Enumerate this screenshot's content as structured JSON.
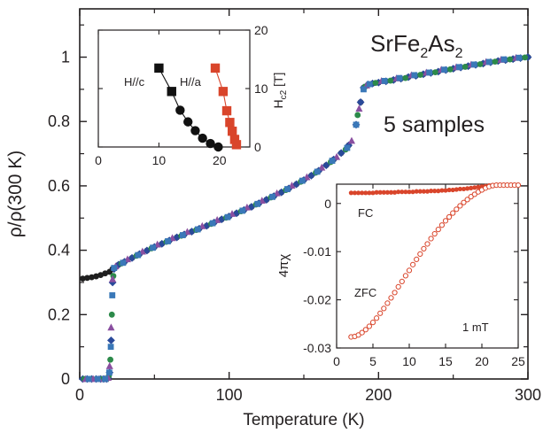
{
  "chart_data": [
    {
      "id": "main",
      "type": "scatter",
      "title": "SrFe2As2",
      "title_parts": {
        "base1": "SrFe",
        "sub1": "2",
        "base2": "As",
        "sub2": "2"
      },
      "annotation": "5 samples",
      "xlabel": "Temperature (K)",
      "ylabel": "ρ/ρ(300 K)",
      "xlim": [
        0,
        300
      ],
      "ylim": [
        0,
        1.15
      ],
      "xticks": [
        "0",
        "100",
        "200",
        "300"
      ],
      "yticks": [
        "0",
        "0.2",
        "0.4",
        "0.6",
        "0.8",
        "1"
      ],
      "grid": false,
      "legend": "none",
      "series": [
        {
          "color": "#1f1f1f",
          "marker": "circle",
          "x": [
            2,
            5,
            8,
            11,
            14,
            17,
            20,
            22,
            26,
            30,
            35,
            40,
            45,
            50,
            55,
            60,
            65,
            70,
            75,
            80,
            85,
            90,
            95,
            100,
            105,
            110,
            115,
            120,
            125,
            130,
            135,
            140,
            145,
            150,
            155,
            160,
            165,
            170,
            175,
            180,
            185,
            188,
            190,
            193,
            196,
            200,
            205,
            210,
            215,
            220,
            225,
            230,
            235,
            240,
            245,
            250,
            255,
            260,
            265,
            270,
            275,
            280,
            285,
            290,
            295,
            300
          ],
          "y": [
            0.312,
            0.314,
            0.316,
            0.319,
            0.323,
            0.328,
            0.333,
            0.342,
            0.355,
            0.364,
            0.376,
            0.388,
            0.399,
            0.41,
            0.42,
            0.43,
            0.44,
            0.449,
            0.458,
            0.467,
            0.476,
            0.486,
            0.496,
            0.505,
            0.515,
            0.525,
            0.535,
            0.546,
            0.557,
            0.568,
            0.58,
            0.592,
            0.605,
            0.618,
            0.632,
            0.647,
            0.664,
            0.682,
            0.702,
            0.726,
            0.79,
            0.86,
            0.905,
            0.915,
            0.918,
            0.921,
            0.925,
            0.929,
            0.933,
            0.938,
            0.942,
            0.947,
            0.951,
            0.955,
            0.96,
            0.964,
            0.968,
            0.972,
            0.976,
            0.98,
            0.984,
            0.988,
            0.991,
            0.994,
            0.997,
            1.0
          ]
        },
        {
          "color": "#2a4a9a",
          "marker": "diamond",
          "x": [
            2,
            5,
            8,
            11,
            14,
            16,
            18,
            19,
            20,
            21,
            22,
            23,
            26,
            30,
            35,
            40,
            45,
            50,
            55,
            60,
            65,
            70,
            75,
            80,
            85,
            90,
            95,
            100,
            105,
            110,
            115,
            120,
            125,
            130,
            135,
            140,
            145,
            150,
            155,
            160,
            165,
            170,
            175,
            180,
            185,
            188,
            190,
            193,
            196,
            200,
            205,
            210,
            215,
            220,
            225,
            230,
            235,
            240,
            245,
            250,
            255,
            260,
            265,
            270,
            275,
            280,
            285,
            290,
            295,
            300
          ],
          "y": [
            0,
            0,
            0,
            0,
            0,
            0,
            0,
            0.003,
            0.02,
            0.12,
            0.3,
            0.342,
            0.355,
            0.364,
            0.376,
            0.388,
            0.399,
            0.41,
            0.42,
            0.43,
            0.44,
            0.449,
            0.458,
            0.467,
            0.476,
            0.486,
            0.496,
            0.505,
            0.515,
            0.525,
            0.535,
            0.546,
            0.557,
            0.568,
            0.58,
            0.592,
            0.605,
            0.618,
            0.632,
            0.647,
            0.664,
            0.682,
            0.702,
            0.726,
            0.79,
            0.86,
            0.905,
            0.915,
            0.918,
            0.921,
            0.925,
            0.929,
            0.933,
            0.938,
            0.942,
            0.947,
            0.951,
            0.955,
            0.96,
            0.964,
            0.968,
            0.972,
            0.976,
            0.98,
            0.984,
            0.988,
            0.991,
            0.994,
            0.997,
            1.0
          ]
        },
        {
          "color": "#2c8a4a",
          "marker": "circle",
          "x": [
            3,
            7,
            11,
            15,
            18,
            19.5,
            20.5,
            21.5,
            22.5,
            28,
            38,
            48,
            58,
            68,
            78,
            88,
            98,
            108,
            118,
            128,
            138,
            148,
            158,
            168,
            178,
            186,
            191,
            198,
            208,
            218,
            228,
            238,
            248,
            258,
            268,
            278,
            288,
            298
          ],
          "y": [
            0,
            0,
            0,
            0,
            0,
            0.01,
            0.06,
            0.2,
            0.32,
            0.359,
            0.383,
            0.406,
            0.426,
            0.445,
            0.463,
            0.482,
            0.501,
            0.521,
            0.542,
            0.564,
            0.587,
            0.613,
            0.641,
            0.674,
            0.713,
            0.82,
            0.908,
            0.92,
            0.927,
            0.935,
            0.945,
            0.953,
            0.962,
            0.97,
            0.978,
            0.986,
            0.993,
            0.999
          ]
        },
        {
          "color": "#8a4fa0",
          "marker": "triangle",
          "x": [
            4,
            9,
            13,
            17,
            19,
            20,
            21,
            22,
            24,
            32,
            42,
            52,
            62,
            72,
            82,
            92,
            102,
            112,
            122,
            132,
            142,
            152,
            162,
            172,
            182,
            187,
            192,
            202,
            212,
            222,
            232,
            242,
            252,
            262,
            272,
            282,
            292
          ],
          "y": [
            0,
            0,
            0,
            0,
            0.004,
            0.04,
            0.16,
            0.31,
            0.35,
            0.372,
            0.396,
            0.418,
            0.438,
            0.457,
            0.475,
            0.494,
            0.513,
            0.533,
            0.554,
            0.577,
            0.601,
            0.627,
            0.657,
            0.69,
            0.74,
            0.84,
            0.912,
            0.926,
            0.934,
            0.944,
            0.952,
            0.961,
            0.969,
            0.977,
            0.985,
            0.992,
            0.998
          ]
        },
        {
          "color": "#3a78b8",
          "marker": "square",
          "x": [
            6,
            12,
            17,
            19.8,
            20.8,
            21.8,
            23,
            29,
            39,
            49,
            59,
            69,
            79,
            89,
            99,
            109,
            119,
            129,
            139,
            149,
            159,
            169,
            179,
            185,
            190,
            194,
            204,
            214,
            224,
            234,
            244,
            254,
            264,
            274,
            284,
            294
          ],
          "y": [
            0,
            0,
            0,
            0.02,
            0.1,
            0.26,
            0.345,
            0.361,
            0.385,
            0.408,
            0.428,
            0.447,
            0.465,
            0.484,
            0.503,
            0.523,
            0.544,
            0.566,
            0.59,
            0.616,
            0.644,
            0.678,
            0.718,
            0.79,
            0.9,
            0.916,
            0.926,
            0.935,
            0.944,
            0.952,
            0.961,
            0.969,
            0.977,
            0.985,
            0.993,
            0.998
          ]
        }
      ]
    },
    {
      "id": "inset_hc2",
      "type": "line",
      "ylabel_base": "H",
      "ylabel_sub": "c2",
      "ylabel_unit": " [T]",
      "xlim": [
        0,
        25
      ],
      "ylim": [
        0,
        20
      ],
      "xticks": [
        "0",
        "10",
        "20"
      ],
      "yticks": [
        "0",
        "10",
        "20"
      ],
      "series": [
        {
          "name": "H//c",
          "color": "#111111",
          "x": [
            10.0,
            12.1,
            13.5,
            14.8,
            16.0,
            17.2,
            18.5,
            19.8
          ],
          "y": [
            13.5,
            9.5,
            6.3,
            4.3,
            2.8,
            1.5,
            0.6,
            0.0
          ]
        },
        {
          "name": "H//a",
          "color": "#d9452b",
          "x": [
            19.3,
            20.6,
            21.2,
            21.7,
            22.1,
            22.5,
            22.8
          ],
          "y": [
            13.5,
            9.5,
            6.2,
            4.2,
            2.7,
            1.3,
            0.4
          ]
        }
      ]
    },
    {
      "id": "inset_chi",
      "type": "scatter",
      "ylabel": "4πχ",
      "annotation": "1 mT",
      "xlim": [
        0,
        25
      ],
      "ylim": [
        -0.03,
        0.004
      ],
      "xticks": [
        "0",
        "5",
        "10",
        "15",
        "20",
        "25"
      ],
      "yticks": [
        "0",
        "-0.01",
        "-0.02",
        "-0.03"
      ],
      "series": [
        {
          "name": "FC",
          "color": "#d9452b",
          "marker": "filled-circle",
          "x": [
            2,
            2.5,
            3,
            3.5,
            4,
            4.5,
            5,
            5.5,
            6,
            6.5,
            7,
            7.5,
            8,
            8.5,
            9,
            9.5,
            10,
            10.5,
            11,
            11.5,
            12,
            12.5,
            13,
            13.5,
            14,
            14.5,
            15,
            15.5,
            16,
            16.5,
            17,
            17.5,
            18,
            18.5,
            19,
            19.5,
            20,
            20.5,
            21,
            21.5,
            22,
            22.5,
            23,
            23.5,
            24,
            24.5,
            25
          ],
          "y": [
            0.0022,
            0.0022,
            0.0022,
            0.0022,
            0.0022,
            0.0022,
            0.0022,
            0.0023,
            0.0023,
            0.0023,
            0.0023,
            0.0023,
            0.0023,
            0.0024,
            0.0024,
            0.0024,
            0.0024,
            0.0024,
            0.0025,
            0.0025,
            0.0025,
            0.0025,
            0.0026,
            0.0026,
            0.0026,
            0.0027,
            0.0027,
            0.0028,
            0.0028,
            0.0029,
            0.003,
            0.003,
            0.0031,
            0.0032,
            0.0033,
            0.0034,
            0.0035,
            0.0036,
            0.0037,
            0.0038,
            0.0038,
            0.0038,
            0.0038,
            0.0038,
            0.0038,
            0.0038,
            0.0038
          ]
        },
        {
          "name": "ZFC",
          "color": "#d9452b",
          "marker": "open-circle",
          "x": [
            2,
            2.5,
            3,
            3.5,
            4,
            4.5,
            5,
            5.5,
            6,
            6.5,
            7,
            7.5,
            8,
            8.5,
            9,
            9.5,
            10,
            10.5,
            11,
            11.5,
            12,
            12.5,
            13,
            13.5,
            14,
            14.5,
            15,
            15.5,
            16,
            16.5,
            17,
            17.5,
            18,
            18.5,
            19,
            19.5,
            20,
            20.5,
            21,
            21.5,
            22,
            22.5,
            23,
            23.5,
            24,
            24.5,
            25
          ],
          "y": [
            -0.0277,
            -0.0276,
            -0.0273,
            -0.0268,
            -0.0262,
            -0.0255,
            -0.0247,
            -0.0238,
            -0.0228,
            -0.0218,
            -0.0207,
            -0.0196,
            -0.0185,
            -0.0173,
            -0.0162,
            -0.015,
            -0.0139,
            -0.0127,
            -0.0116,
            -0.0105,
            -0.0094,
            -0.0084,
            -0.0073,
            -0.0063,
            -0.0054,
            -0.0045,
            -0.0036,
            -0.0028,
            -0.002,
            -0.0012,
            -0.0005,
            0.0002,
            0.0008,
            0.0014,
            0.0019,
            0.0024,
            0.0028,
            0.0032,
            0.0035,
            0.0037,
            0.0038,
            0.0038,
            0.0038,
            0.0038,
            0.0038,
            0.0038,
            0.0038
          ]
        }
      ]
    }
  ]
}
